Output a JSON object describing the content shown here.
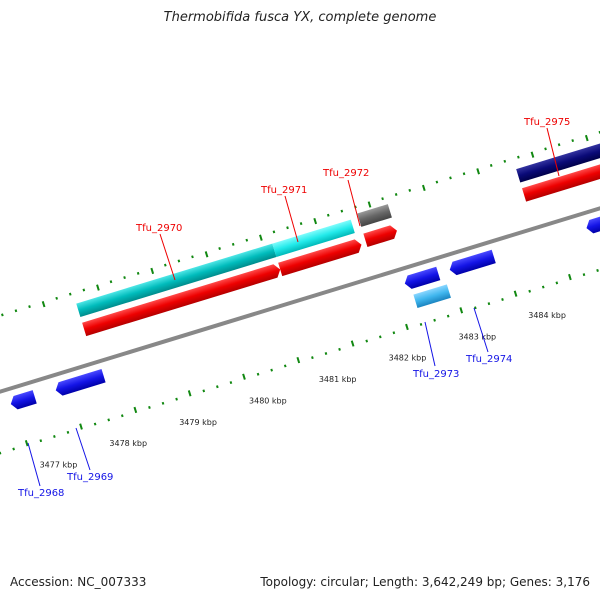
{
  "title": "Thermobifida fusca YX, complete genome",
  "footer": {
    "accession": "Accession: NC_007333",
    "stats": "Topology: circular; Length: 3,642,249 bp; Genes: 3,176"
  },
  "colors": {
    "forward_cds": "#ee0000",
    "reverse_cds": "#1414e6",
    "rna": "#00cccc",
    "light_blue": "#3fb6ee",
    "navy": "#0a0a78",
    "gray": "#666666",
    "tick": "#118811",
    "backbone": "#888888"
  },
  "scale_labels": [
    "3477 kbp",
    "3478 kbp",
    "3479 kbp",
    "3480 kbp",
    "3481 kbp",
    "3482 kbp",
    "3483 kbp",
    "3484 kbp"
  ],
  "gene_labels": [
    {
      "text": "Tfu_2968",
      "strand": "reverse"
    },
    {
      "text": "Tfu_2969",
      "strand": "reverse"
    },
    {
      "text": "Tfu_2970",
      "strand": "forward"
    },
    {
      "text": "Tfu_2971",
      "strand": "forward"
    },
    {
      "text": "Tfu_2972",
      "strand": "forward"
    },
    {
      "text": "Tfu_2973",
      "strand": "reverse"
    },
    {
      "text": "Tfu_2974",
      "strand": "reverse"
    },
    {
      "text": "Tfu_2975",
      "strand": "forward"
    }
  ]
}
